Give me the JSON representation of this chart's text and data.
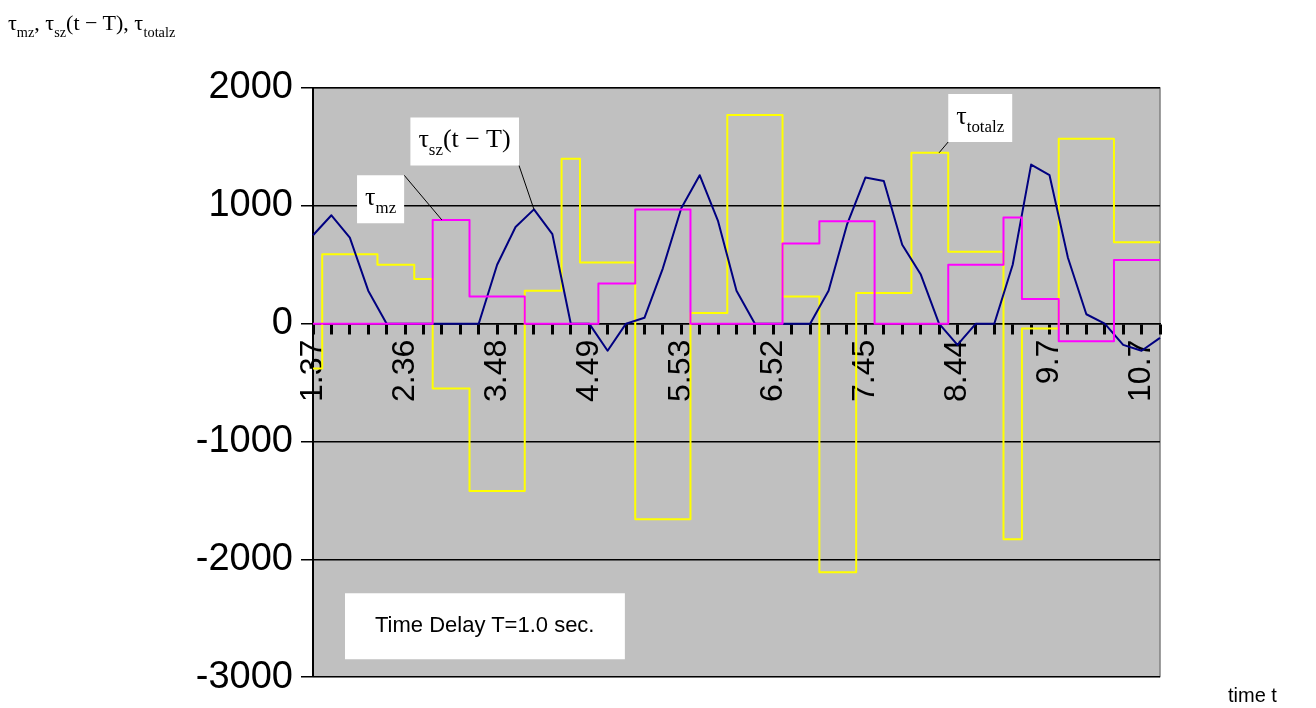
{
  "chart_data": {
    "type": "line",
    "ylabel": "τ$_{mz}$, τ$_{sz}$(t − T), τ$_{totalz}$",
    "xlabel": "time t",
    "annotations": [
      "Time Delay T=1.0 sec."
    ],
    "categories": [
      "1.37",
      null,
      null,
      null,
      null,
      "2.36",
      null,
      null,
      null,
      null,
      "3.48",
      null,
      null,
      null,
      null,
      "4.49",
      null,
      null,
      null,
      null,
      "5.53",
      null,
      null,
      null,
      null,
      "6.52",
      null,
      null,
      null,
      null,
      "7.45",
      null,
      null,
      null,
      null,
      "8.44",
      null,
      null,
      null,
      null,
      "9.7",
      null,
      null,
      null,
      null,
      "10.7",
      null
    ],
    "series": [
      {
        "name": "τ$_{mz}$",
        "type": "step",
        "color": "#ff00ff",
        "values": [
          0,
          0,
          0,
          0,
          0,
          0,
          0,
          880,
          880,
          230,
          230,
          230,
          0,
          0,
          0,
          0,
          340,
          340,
          970,
          970,
          970,
          0,
          0,
          0,
          0,
          0,
          680,
          680,
          870,
          870,
          870,
          0,
          0,
          0,
          0,
          500,
          500,
          500,
          900,
          210,
          210,
          -150,
          -150,
          -150,
          540,
          540,
          540
        ]
      },
      {
        "name": "τ$_{sz}$(t − T)",
        "type": "line",
        "color": "#000080",
        "values": [
          750,
          920,
          730,
          280,
          0,
          0,
          0,
          0,
          0,
          0,
          500,
          820,
          970,
          760,
          0,
          0,
          -230,
          0,
          50,
          470,
          980,
          1260,
          870,
          280,
          0,
          0,
          0,
          0,
          280,
          840,
          1240,
          1210,
          670,
          420,
          0,
          -180,
          0,
          0,
          500,
          1350,
          1260,
          560,
          80,
          0,
          -180,
          -230,
          -120
        ]
      },
      {
        "name": "τ$_{totalz}$",
        "type": "step",
        "color": "#ffff00",
        "values": [
          -380,
          590,
          590,
          590,
          500,
          500,
          380,
          -550,
          -550,
          -1420,
          -1420,
          -1420,
          280,
          280,
          1400,
          520,
          520,
          520,
          -1660,
          -1660,
          -1660,
          90,
          90,
          1770,
          1770,
          1770,
          230,
          230,
          -2110,
          -2110,
          260,
          260,
          260,
          1450,
          1450,
          610,
          610,
          610,
          -1830,
          -40,
          -40,
          1570,
          1570,
          1570,
          690,
          690,
          690
        ]
      }
    ],
    "ylim": [
      -3000,
      2000
    ],
    "yticks": [
      2000,
      1000,
      0,
      -1000,
      -2000,
      -3000
    ],
    "grid": "y",
    "legend": false
  }
}
